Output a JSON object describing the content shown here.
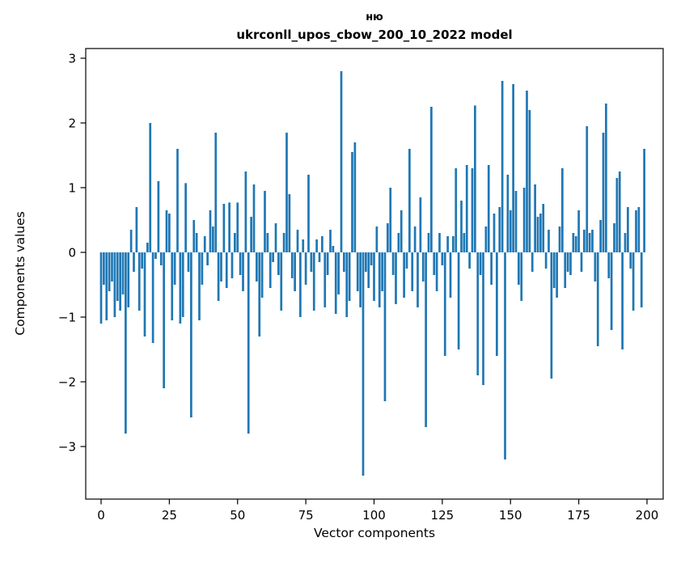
{
  "chart_data": {
    "type": "bar",
    "title": "ню",
    "subtitle": "ukrconll_upos_cbow_200_10_2022 model",
    "xlabel": "Vector components",
    "ylabel": "Components values",
    "bar_color": "#1f77b4",
    "xlim": [
      -5.6,
      205.9
    ],
    "ylim": [
      -3.8,
      3.15
    ],
    "xticks": [
      0,
      25,
      50,
      75,
      100,
      125,
      150,
      175,
      200
    ],
    "xtick_labels": [
      "0",
      "25",
      "50",
      "75",
      "100",
      "125",
      "150",
      "175",
      "200"
    ],
    "yticks": [
      -3,
      -2,
      -1,
      0,
      1,
      2,
      3
    ],
    "ytick_labels": [
      "−3",
      "−2",
      "−1",
      "0",
      "1",
      "2",
      "3"
    ],
    "n_components": 200,
    "values": [
      -1.1,
      -0.5,
      -1.05,
      -0.6,
      -0.45,
      -1.0,
      -0.75,
      -0.9,
      -0.65,
      -2.8,
      -0.85,
      0.35,
      -0.3,
      0.7,
      -0.9,
      -0.25,
      -1.3,
      0.15,
      2.0,
      -1.4,
      -0.1,
      1.1,
      -0.2,
      -2.1,
      0.65,
      0.6,
      -1.05,
      -0.5,
      1.6,
      -1.1,
      -1.0,
      1.07,
      -0.3,
      -2.55,
      0.5,
      0.3,
      -1.05,
      -0.5,
      0.25,
      -0.2,
      0.65,
      0.4,
      1.85,
      -0.75,
      -0.45,
      0.75,
      -0.55,
      0.77,
      -0.4,
      0.3,
      0.77,
      -0.35,
      -0.6,
      1.25,
      -2.8,
      0.55,
      1.05,
      -0.45,
      -1.3,
      -0.7,
      0.95,
      0.3,
      -0.55,
      -0.15,
      0.45,
      -0.35,
      -0.9,
      0.3,
      1.85,
      0.9,
      -0.4,
      -0.6,
      0.35,
      -1.0,
      0.2,
      -0.5,
      1.2,
      -0.3,
      -0.9,
      0.2,
      -0.15,
      0.25,
      -0.85,
      -0.35,
      0.35,
      0.1,
      -0.95,
      -0.65,
      2.8,
      -0.3,
      -1.0,
      -0.75,
      1.55,
      1.7,
      -0.6,
      -0.85,
      -3.45,
      -0.3,
      -0.55,
      -0.2,
      -0.75,
      0.4,
      -0.85,
      -0.6,
      -2.3,
      0.45,
      1.0,
      -0.35,
      -0.8,
      0.3,
      0.65,
      -0.7,
      -0.25,
      1.6,
      -0.6,
      0.4,
      -0.85,
      0.85,
      -0.45,
      -2.7,
      0.3,
      2.25,
      -0.35,
      -0.6,
      0.3,
      -0.2,
      -1.6,
      0.25,
      -0.7,
      0.25,
      1.3,
      -1.5,
      0.8,
      0.3,
      1.35,
      -0.25,
      1.3,
      2.27,
      -1.9,
      -0.35,
      -2.05,
      0.4,
      1.35,
      -0.5,
      0.6,
      -1.6,
      0.7,
      2.65,
      -3.2,
      1.2,
      0.65,
      2.6,
      0.95,
      -0.5,
      -0.75,
      1.0,
      2.5,
      2.2,
      -0.3,
      1.05,
      0.55,
      0.6,
      0.75,
      -0.25,
      0.35,
      -1.95,
      -0.55,
      -0.7,
      0.4,
      1.3,
      -0.55,
      -0.3,
      -0.35,
      0.3,
      0.25,
      0.65,
      -0.3,
      0.35,
      1.95,
      0.3,
      0.35,
      -0.45,
      -1.45,
      0.5,
      1.85,
      2.3,
      -0.4,
      -1.2,
      0.45,
      1.15,
      1.25,
      -1.5,
      0.3,
      0.7,
      -0.25,
      -0.9,
      0.65,
      0.7,
      -0.85,
      1.6
    ]
  }
}
